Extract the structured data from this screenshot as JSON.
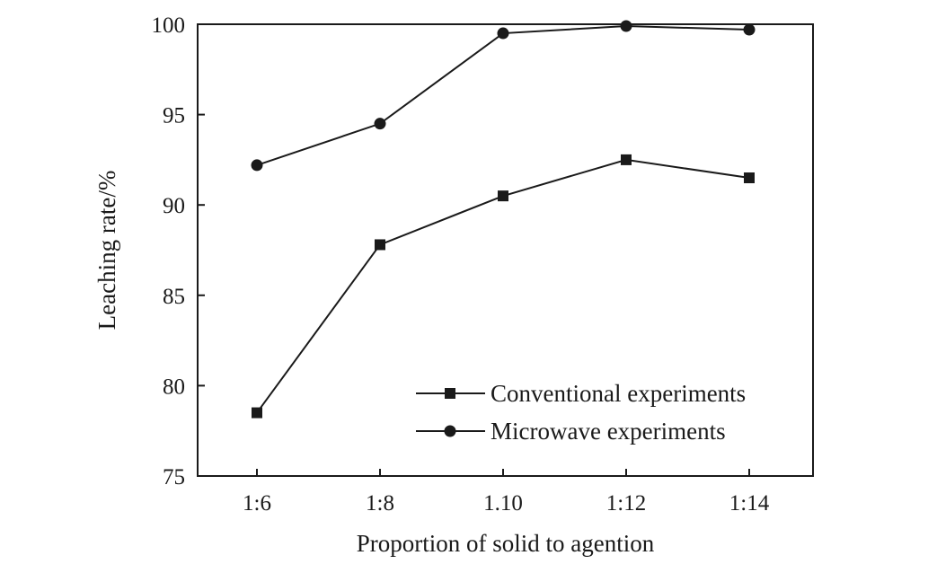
{
  "chart_data": {
    "type": "line",
    "categories": [
      "1:6",
      "1:8",
      "1.10",
      "1:12",
      "1:14"
    ],
    "xlabel": "Proportion of solid to agention",
    "ylabel": "Leaching rate/%",
    "ylim": [
      75,
      100
    ],
    "yticks": [
      75,
      80,
      85,
      90,
      95,
      100
    ],
    "grid": false,
    "legend_position": "bottom-right",
    "series": [
      {
        "name": "Conventional experiments",
        "marker": "square",
        "values": [
          78.5,
          87.8,
          90.5,
          92.5,
          91.5
        ]
      },
      {
        "name": "Microwave experiments",
        "marker": "circle",
        "values": [
          92.2,
          94.5,
          99.5,
          99.9,
          99.7
        ]
      }
    ]
  }
}
